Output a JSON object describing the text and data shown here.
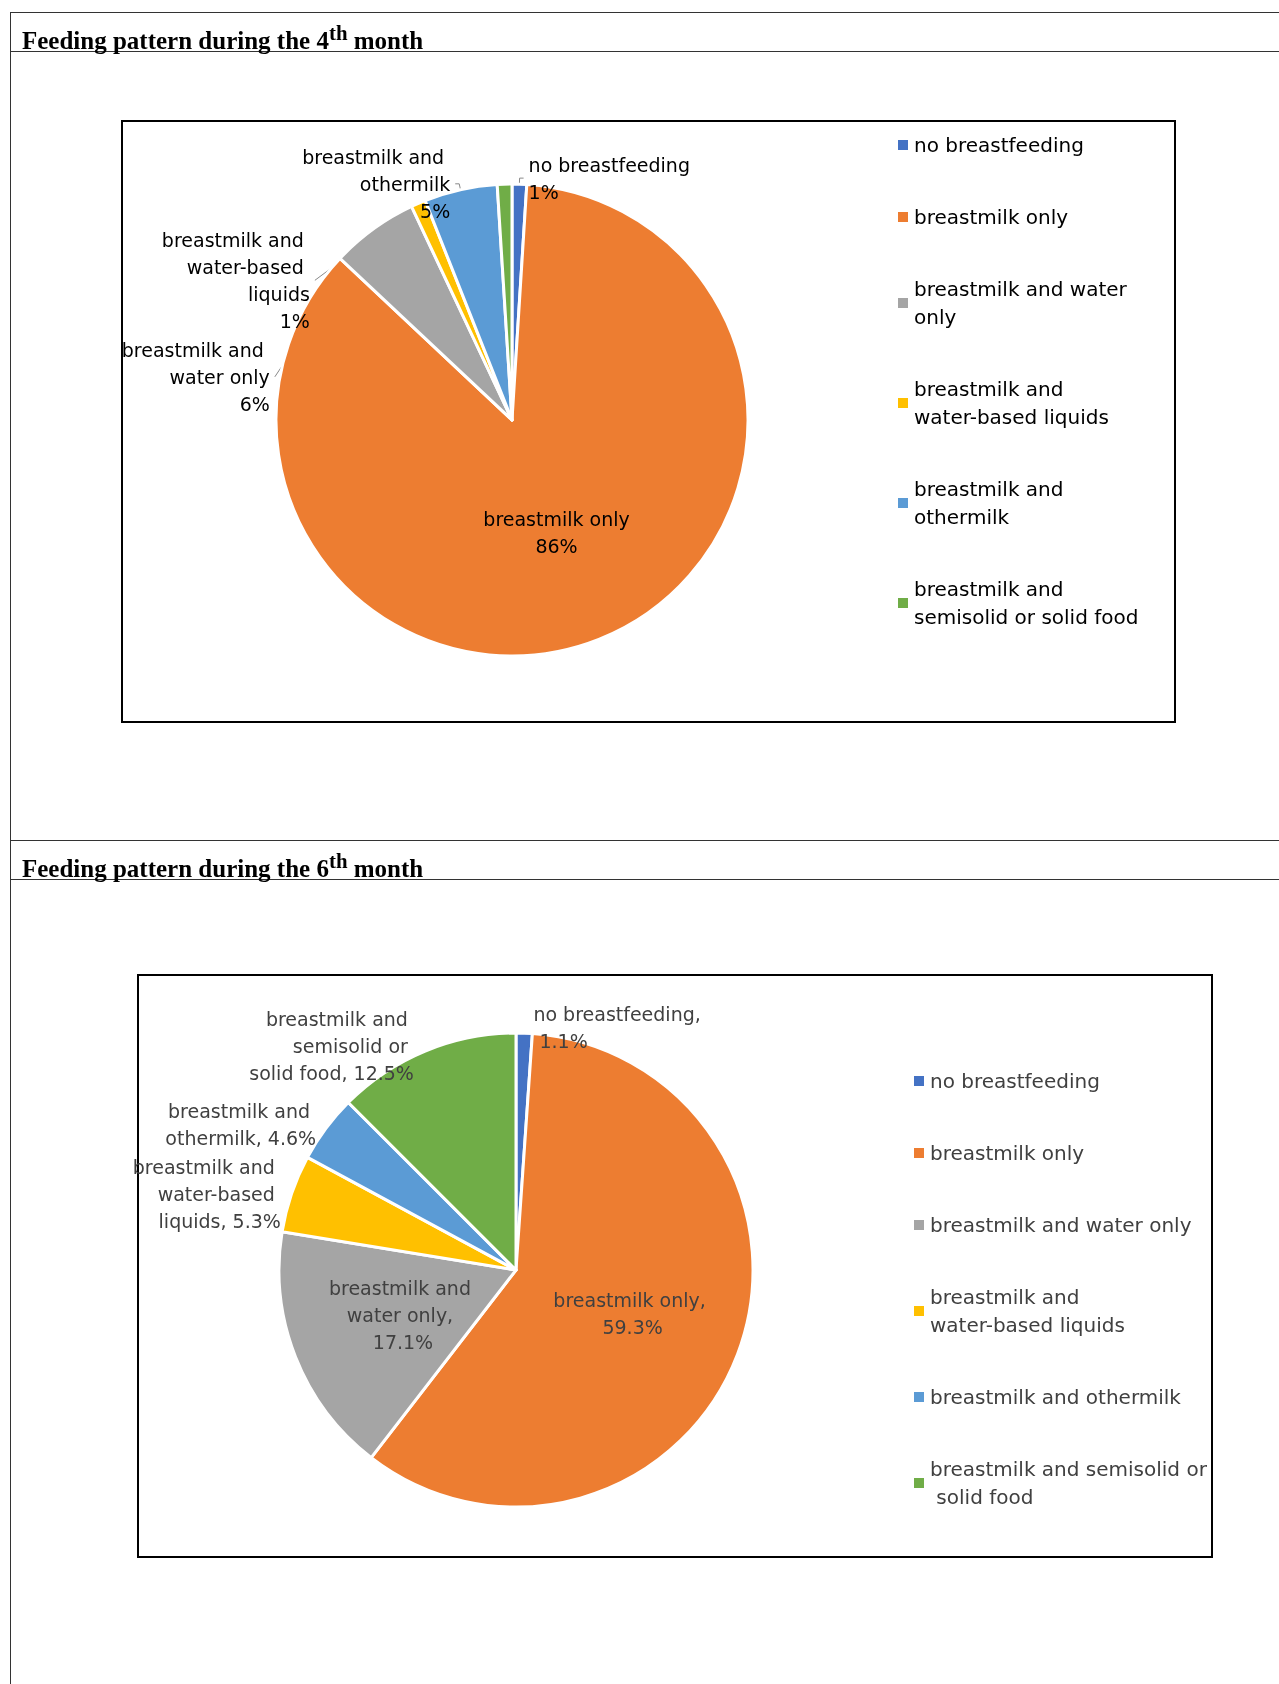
{
  "chart_data": [
    {
      "type": "pie",
      "title": "Feeding pattern during the 4$^{th}$  month",
      "categories": [
        "no breastfeeding",
        "breastmilk only",
        "breastmilk and water only",
        "breastmilk and water-based liquids",
        "breastmilk and othermilk",
        "breastmilk and semisolid or solid food"
      ],
      "values": [
        1,
        86,
        6,
        1,
        5,
        1
      ],
      "value_labels": [
        "1%",
        "86%",
        "6%",
        "1%",
        "5%",
        null
      ],
      "colors": [
        "#4472c4",
        "#ed7d31",
        "#a5a5a5",
        "#ffc000",
        "#5b9bd5",
        "#70ad47"
      ],
      "legend": "right"
    },
    {
      "type": "pie",
      "title": "Feeding pattern during the 6$^{th}$  month",
      "categories": [
        "no breastfeeding",
        "breastmilk only",
        "breastmilk and water only",
        "breastmilk and water-based liquids",
        "breastmilk and othermilk",
        "breastmilk and semisolid or solid food"
      ],
      "values": [
        1.1,
        59.3,
        17.1,
        5.3,
        4.6,
        12.5
      ],
      "value_labels": [
        "no breastfeeding, 1.1%",
        "breastmilk only, 59.3%",
        "breastmilk and water only, 17.1%",
        "breastmilk and water-based liquids, 5.3%",
        "breastmilk and othermilk, 4.6%",
        "breastmilk and semisolid or solid food, 12.5%"
      ],
      "colors": [
        "#4472c4",
        "#ed7d31",
        "#a5a5a5",
        "#ffc000",
        "#5b9bd5",
        "#70ad47"
      ],
      "legend": "right"
    }
  ]
}
